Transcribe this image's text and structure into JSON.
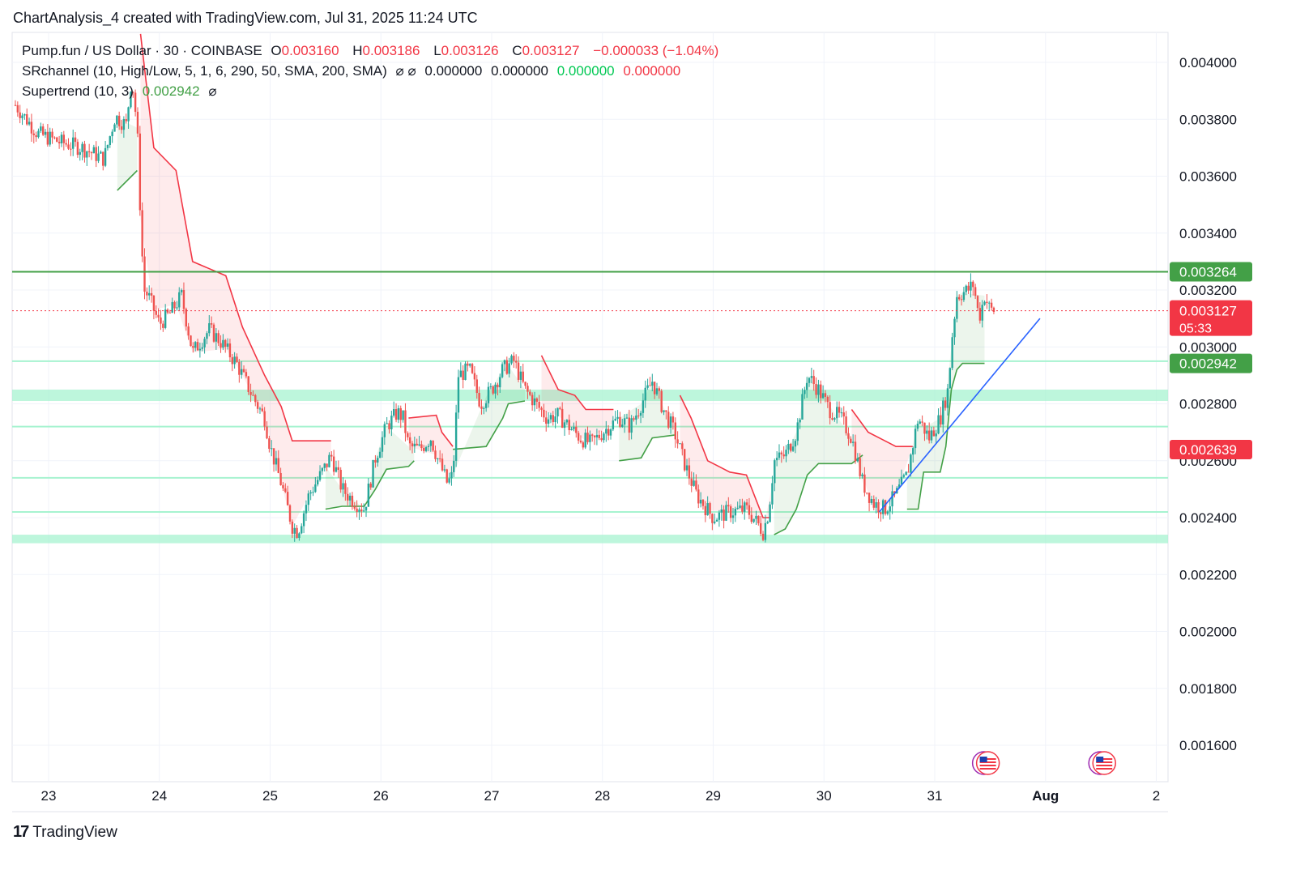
{
  "header": {
    "credit": "ChartAnalysis_4 created with TradingView.com, Jul 31, 2025 11:24 UTC"
  },
  "legend": {
    "symbol": "Pump.fun / US Dollar · 30 · COINBASE",
    "o_label": "O",
    "o_value": "0.003160",
    "h_label": "H",
    "h_value": "0.003186",
    "l_label": "L",
    "l_value": "0.003126",
    "c_label": "C",
    "c_value": "0.003127",
    "change": "−0.000033 (−1.04%)",
    "srchannel_name": "SRchannel (10, High/Low, 5, 1, 6, 290, 50, SMA, 200, SMA)",
    "srchannel_icons": "⌀ ⌀",
    "sr_v1": "0.000000",
    "sr_v2": "0.000000",
    "sr_v3": "0.000000",
    "sr_v4": "0.000000",
    "supertrend_name": "Supertrend (10, 3)",
    "supertrend_value": "0.002942",
    "supertrend_icon": "⌀"
  },
  "footer": {
    "brand": "TradingView",
    "mark": "17"
  },
  "colors": {
    "up": "#26a69a",
    "down": "#ef5350",
    "st_up": "#43a047",
    "st_down": "#f23645",
    "resistance": "#43a047",
    "zone": "#a7f3d0",
    "trendline": "#2962ff",
    "grid": "#f0f3fa"
  },
  "chart_data": {
    "type": "candlestick",
    "title": "Pump.fun / US Dollar · 30 · COINBASE",
    "ylim": [
      0.0015,
      0.0041
    ],
    "y_ticks": [
      "0.001600",
      "0.001800",
      "0.002000",
      "0.002200",
      "0.002400",
      "0.002600",
      "0.002800",
      "0.003000",
      "0.003200",
      "0.003400",
      "0.003600",
      "0.003800",
      "0.004000"
    ],
    "x_ticks": [
      "23",
      "24",
      "25",
      "26",
      "27",
      "28",
      "29",
      "30",
      "31",
      "Aug",
      "2"
    ],
    "price_path": [
      [
        22.7,
        0.00385
      ],
      [
        22.9,
        0.00375
      ],
      [
        23.1,
        0.00372
      ],
      [
        23.3,
        0.0037
      ],
      [
        23.5,
        0.00366
      ],
      [
        23.6,
        0.00381
      ],
      [
        23.7,
        0.00378
      ],
      [
        23.75,
        0.00395
      ],
      [
        23.8,
        0.00377
      ],
      [
        23.83,
        0.00345
      ],
      [
        23.86,
        0.0032
      ],
      [
        23.9,
        0.00318
      ],
      [
        24.0,
        0.00308
      ],
      [
        24.1,
        0.00312
      ],
      [
        24.2,
        0.00318
      ],
      [
        24.3,
        0.00298
      ],
      [
        24.45,
        0.00306
      ],
      [
        24.55,
        0.00302
      ],
      [
        24.7,
        0.00294
      ],
      [
        24.85,
        0.00282
      ],
      [
        24.95,
        0.00275
      ],
      [
        25.0,
        0.00265
      ],
      [
        25.1,
        0.00252
      ],
      [
        25.2,
        0.00237
      ],
      [
        25.25,
        0.00235
      ],
      [
        25.35,
        0.00248
      ],
      [
        25.5,
        0.00258
      ],
      [
        25.55,
        0.00262
      ],
      [
        25.65,
        0.0025
      ],
      [
        25.75,
        0.00246
      ],
      [
        25.85,
        0.00243
      ],
      [
        25.95,
        0.00261
      ],
      [
        26.05,
        0.00272
      ],
      [
        26.15,
        0.00277
      ],
      [
        26.2,
        0.00275
      ],
      [
        26.25,
        0.00265
      ],
      [
        26.35,
        0.00264
      ],
      [
        26.45,
        0.00268
      ],
      [
        26.5,
        0.00262
      ],
      [
        26.6,
        0.00252
      ],
      [
        26.65,
        0.00255
      ],
      [
        26.7,
        0.0029
      ],
      [
        26.8,
        0.00292
      ],
      [
        26.9,
        0.0028
      ],
      [
        27.0,
        0.00285
      ],
      [
        27.1,
        0.00292
      ],
      [
        27.2,
        0.00295
      ],
      [
        27.3,
        0.00285
      ],
      [
        27.4,
        0.0028
      ],
      [
        27.5,
        0.00275
      ],
      [
        27.6,
        0.00276
      ],
      [
        27.7,
        0.00272
      ],
      [
        27.8,
        0.00268
      ],
      [
        27.9,
        0.00266
      ],
      [
        28.0,
        0.0027
      ],
      [
        28.15,
        0.00275
      ],
      [
        28.25,
        0.00272
      ],
      [
        28.35,
        0.0028
      ],
      [
        28.45,
        0.00288
      ],
      [
        28.55,
        0.00278
      ],
      [
        28.65,
        0.0027
      ],
      [
        28.75,
        0.00258
      ],
      [
        28.85,
        0.00248
      ],
      [
        29.0,
        0.0024
      ],
      [
        29.15,
        0.00242
      ],
      [
        29.3,
        0.00243
      ],
      [
        29.4,
        0.00238
      ],
      [
        29.45,
        0.00235
      ],
      [
        29.5,
        0.00242
      ],
      [
        29.55,
        0.0026
      ],
      [
        29.65,
        0.00262
      ],
      [
        29.75,
        0.0027
      ],
      [
        29.85,
        0.0029
      ],
      [
        29.95,
        0.00285
      ],
      [
        30.05,
        0.00278
      ],
      [
        30.15,
        0.00275
      ],
      [
        30.25,
        0.00268
      ],
      [
        30.35,
        0.00252
      ],
      [
        30.45,
        0.00245
      ],
      [
        30.55,
        0.00243
      ],
      [
        30.65,
        0.00248
      ],
      [
        30.75,
        0.00255
      ],
      [
        30.85,
        0.00275
      ],
      [
        30.95,
        0.00268
      ],
      [
        31.05,
        0.00275
      ],
      [
        31.12,
        0.00285
      ],
      [
        31.16,
        0.00305
      ],
      [
        31.2,
        0.00318
      ],
      [
        31.3,
        0.0032
      ],
      [
        31.35,
        0.00322
      ],
      [
        31.4,
        0.0031
      ],
      [
        31.45,
        0.00318
      ],
      [
        31.5,
        0.00313
      ],
      [
        31.55,
        0.003127
      ]
    ],
    "supertrend": {
      "value": 0.002942,
      "segments": [
        {
          "dir": "up",
          "points": [
            [
              23.62,
              0.00355
            ],
            [
              23.8,
              0.00362
            ]
          ]
        },
        {
          "dir": "down",
          "points": [
            [
              23.83,
              0.0041
            ],
            [
              23.95,
              0.0037
            ],
            [
              24.15,
              0.00362
            ],
            [
              24.3,
              0.0033
            ],
            [
              24.6,
              0.00325
            ],
            [
              24.75,
              0.00307
            ],
            [
              24.95,
              0.0029
            ],
            [
              25.1,
              0.00279
            ],
            [
              25.2,
              0.00267
            ],
            [
              25.55,
              0.00267
            ]
          ]
        },
        {
          "dir": "up",
          "points": [
            [
              25.5,
              0.00243
            ],
            [
              25.65,
              0.00244
            ],
            [
              25.85,
              0.00244
            ],
            [
              25.95,
              0.0025
            ],
            [
              26.05,
              0.00257
            ],
            [
              26.25,
              0.00258
            ],
            [
              26.3,
              0.0026
            ]
          ]
        },
        {
          "dir": "down",
          "points": [
            [
              26.25,
              0.00275
            ],
            [
              26.5,
              0.00276
            ],
            [
              26.55,
              0.0027
            ],
            [
              26.65,
              0.00265
            ]
          ]
        },
        {
          "dir": "up",
          "points": [
            [
              26.65,
              0.00264
            ],
            [
              26.95,
              0.00265
            ],
            [
              27.1,
              0.00275
            ],
            [
              27.15,
              0.0028
            ],
            [
              27.3,
              0.00281
            ]
          ]
        },
        {
          "dir": "down",
          "points": [
            [
              27.45,
              0.00297
            ],
            [
              27.6,
              0.00285
            ],
            [
              27.75,
              0.00283
            ],
            [
              27.85,
              0.00278
            ],
            [
              28.1,
              0.00278
            ]
          ]
        },
        {
          "dir": "up",
          "points": [
            [
              28.15,
              0.0026
            ],
            [
              28.35,
              0.00261
            ],
            [
              28.45,
              0.00268
            ],
            [
              28.65,
              0.00269
            ]
          ]
        },
        {
          "dir": "down",
          "points": [
            [
              28.7,
              0.00283
            ],
            [
              28.8,
              0.00275
            ],
            [
              28.95,
              0.0026
            ],
            [
              29.15,
              0.00256
            ],
            [
              29.3,
              0.00255
            ],
            [
              29.45,
              0.0024
            ],
            [
              29.52,
              0.0024
            ]
          ]
        },
        {
          "dir": "up",
          "points": [
            [
              29.55,
              0.00234
            ],
            [
              29.65,
              0.00236
            ],
            [
              29.75,
              0.00243
            ],
            [
              29.85,
              0.00255
            ],
            [
              29.95,
              0.00259
            ],
            [
              30.25,
              0.00259
            ],
            [
              30.35,
              0.00262
            ]
          ]
        },
        {
          "dir": "down",
          "points": [
            [
              30.25,
              0.00278
            ],
            [
              30.4,
              0.0027
            ],
            [
              30.55,
              0.00267
            ],
            [
              30.65,
              0.00265
            ],
            [
              30.8,
              0.00265
            ]
          ]
        },
        {
          "dir": "up",
          "points": [
            [
              30.75,
              0.00243
            ],
            [
              30.85,
              0.00243
            ],
            [
              30.9,
              0.00256
            ],
            [
              31.05,
              0.00256
            ],
            [
              31.1,
              0.00265
            ],
            [
              31.15,
              0.00285
            ],
            [
              31.2,
              0.00292
            ],
            [
              31.25,
              0.002942
            ],
            [
              31.45,
              0.002942
            ]
          ]
        }
      ]
    },
    "resistance_line": {
      "value": 0.003264,
      "label": "0.003264"
    },
    "zones": [
      [
        0.00281,
        0.00285
      ],
      [
        0.00231,
        0.00234
      ]
    ],
    "zone_lines": [
      0.00295,
      0.00272,
      0.00254,
      0.00242
    ],
    "current_price": {
      "value": 0.003127,
      "label": "0.003127",
      "countdown": "05:33"
    },
    "supertrend_label": {
      "value": 0.002942,
      "label": "0.002942"
    },
    "extra_label": {
      "value": 0.002639,
      "label": "0.002639"
    },
    "trendline": [
      [
        30.5,
        0.00242
      ],
      [
        31.95,
        0.0031
      ]
    ],
    "events": [
      31.48,
      32.53
    ]
  }
}
